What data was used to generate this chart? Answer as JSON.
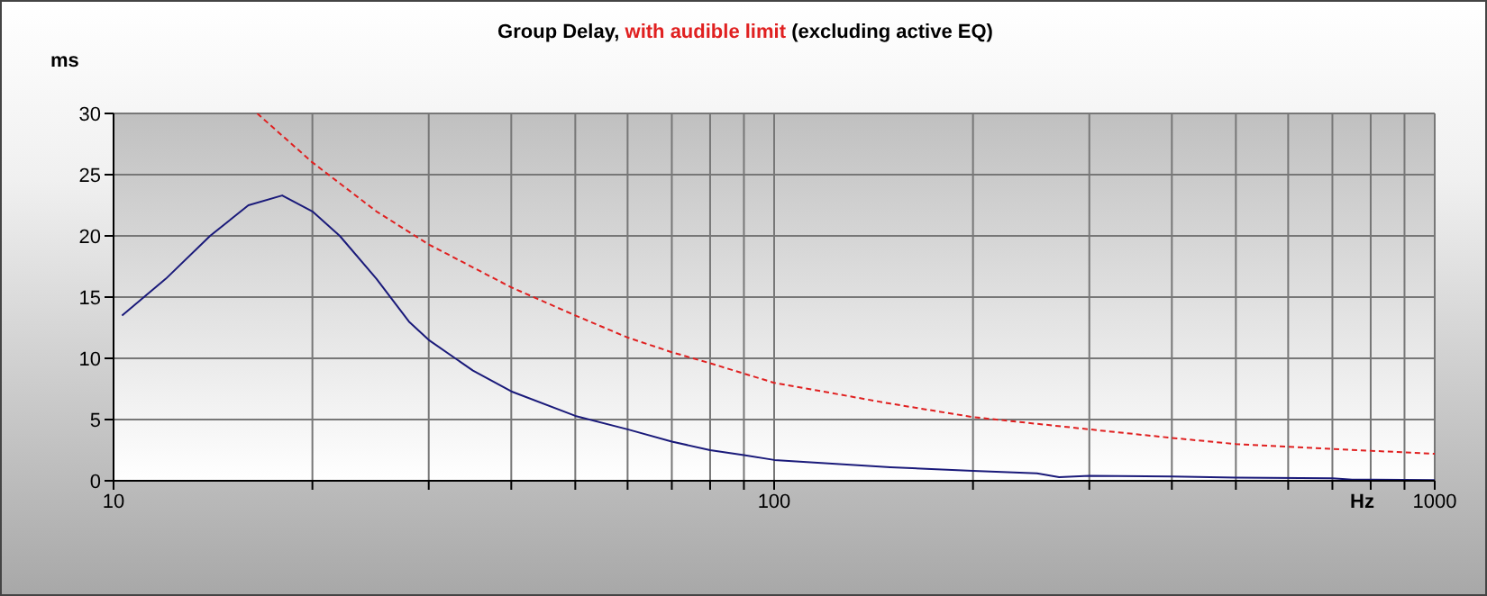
{
  "chart_data": {
    "type": "line",
    "title": "Group Delay,",
    "subtitle": "(excluding active EQ)",
    "xlabel": "Hz",
    "ylabel": "ms",
    "log": "x",
    "grid": true,
    "legend": "top",
    "xlim": [
      10,
      1000
    ],
    "ylim": [
      0,
      30
    ],
    "xticks": [
      10,
      {
        "value": 20,
        "label": null
      },
      {
        "value": 30,
        "label": null
      },
      {
        "value": 40,
        "label": null
      },
      {
        "value": 50,
        "label": null
      },
      {
        "value": 60,
        "label": null
      },
      {
        "value": 70,
        "label": null
      },
      {
        "value": 80,
        "label": null
      },
      {
        "value": 90,
        "label": null
      },
      100,
      {
        "value": 200,
        "label": null
      },
      {
        "value": 300,
        "label": null
      },
      {
        "value": 400,
        "label": null
      },
      {
        "value": 500,
        "label": null
      },
      {
        "value": 600,
        "label": null
      },
      {
        "value": 700,
        "label": null
      },
      {
        "value": 800,
        "label": null
      },
      {
        "value": 900,
        "label": null
      },
      1000
    ],
    "yticks": [
      0,
      5,
      10,
      15,
      20,
      25,
      30
    ],
    "series": [
      {
        "color": "#1a1a7a",
        "line_style": "solid",
        "x": [
          10.3,
          12,
          14,
          16,
          18,
          20,
          22,
          25,
          28,
          30,
          35,
          40,
          50,
          60,
          70,
          80,
          90,
          100,
          150,
          200,
          250,
          270,
          300,
          400,
          500,
          700,
          750,
          1000
        ],
        "values": [
          13.5,
          16.5,
          20,
          22.5,
          23.3,
          22,
          20,
          16.5,
          13,
          11.5,
          9,
          7.3,
          5.3,
          4.2,
          3.2,
          2.5,
          2.1,
          1.7,
          1.1,
          0.8,
          0.6,
          0.3,
          0.4,
          0.35,
          0.25,
          0.2,
          0.1,
          0.05
        ]
      },
      {
        "name": "with audible limit",
        "color": "#e02020",
        "line_style": "dashed",
        "x": [
          16.5,
          20,
          25,
          30,
          40,
          50,
          60,
          70,
          80,
          100,
          150,
          200,
          300,
          400,
          500,
          700,
          1000
        ],
        "values": [
          30,
          26,
          22,
          19.3,
          15.8,
          13.5,
          11.7,
          10.5,
          9.6,
          8.0,
          6.3,
          5.2,
          4.2,
          3.5,
          3.0,
          2.6,
          2.2
        ]
      }
    ]
  }
}
